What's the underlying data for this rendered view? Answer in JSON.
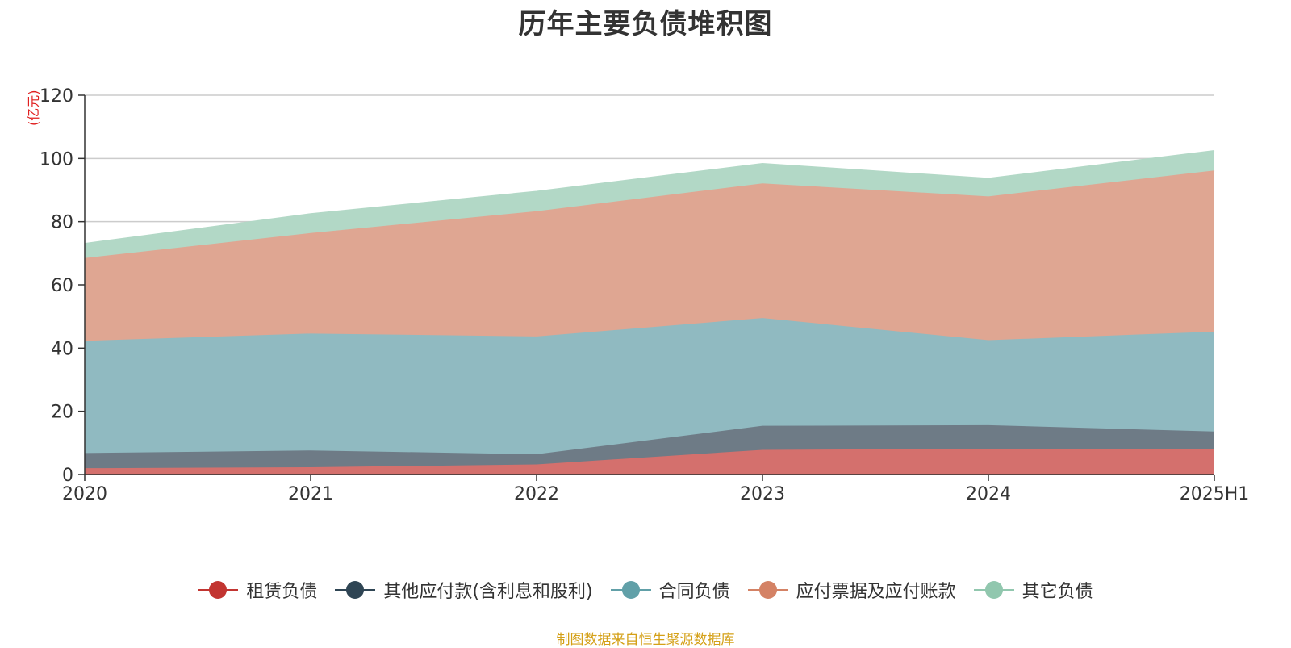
{
  "title": "历年主要负债堆积图",
  "unit_label": "(亿元)",
  "source_note": "制图数据来自恒生聚源数据库",
  "chart_data": {
    "type": "area",
    "stacked": true,
    "title": "历年主要负债堆积图",
    "ylabel": "(亿元)",
    "ylim": [
      0,
      120
    ],
    "yticks": [
      0,
      20,
      40,
      60,
      80,
      100,
      120
    ],
    "categories": [
      "2020",
      "2021",
      "2022",
      "2023",
      "2024",
      "2025H1"
    ],
    "grid": true,
    "legend_position": "bottom",
    "series": [
      {
        "name": "租赁负债",
        "color": "#c23531",
        "fill": "#d4706d",
        "values": [
          2.0,
          2.3,
          3.2,
          7.8,
          8.1,
          8.0
        ]
      },
      {
        "name": "其他应付款(含利息和股利)",
        "color": "#2f4554",
        "fill": "#6e7b86",
        "values": [
          4.8,
          5.3,
          3.2,
          7.6,
          7.5,
          5.6
        ]
      },
      {
        "name": "合同负债",
        "color": "#61a0a8",
        "fill": "#90bac1",
        "values": [
          35.5,
          37.0,
          37.3,
          34.1,
          26.9,
          31.6
        ]
      },
      {
        "name": "应付票据及应付账款",
        "color": "#d48265",
        "fill": "#dfa692",
        "values": [
          26.2,
          31.8,
          39.6,
          42.6,
          45.5,
          51.0
        ]
      },
      {
        "name": "其它负债",
        "color": "#91c7ae",
        "fill": "#b2d8c6",
        "values": [
          4.5,
          6.0,
          6.2,
          6.2,
          5.6,
          6.2
        ]
      }
    ]
  }
}
